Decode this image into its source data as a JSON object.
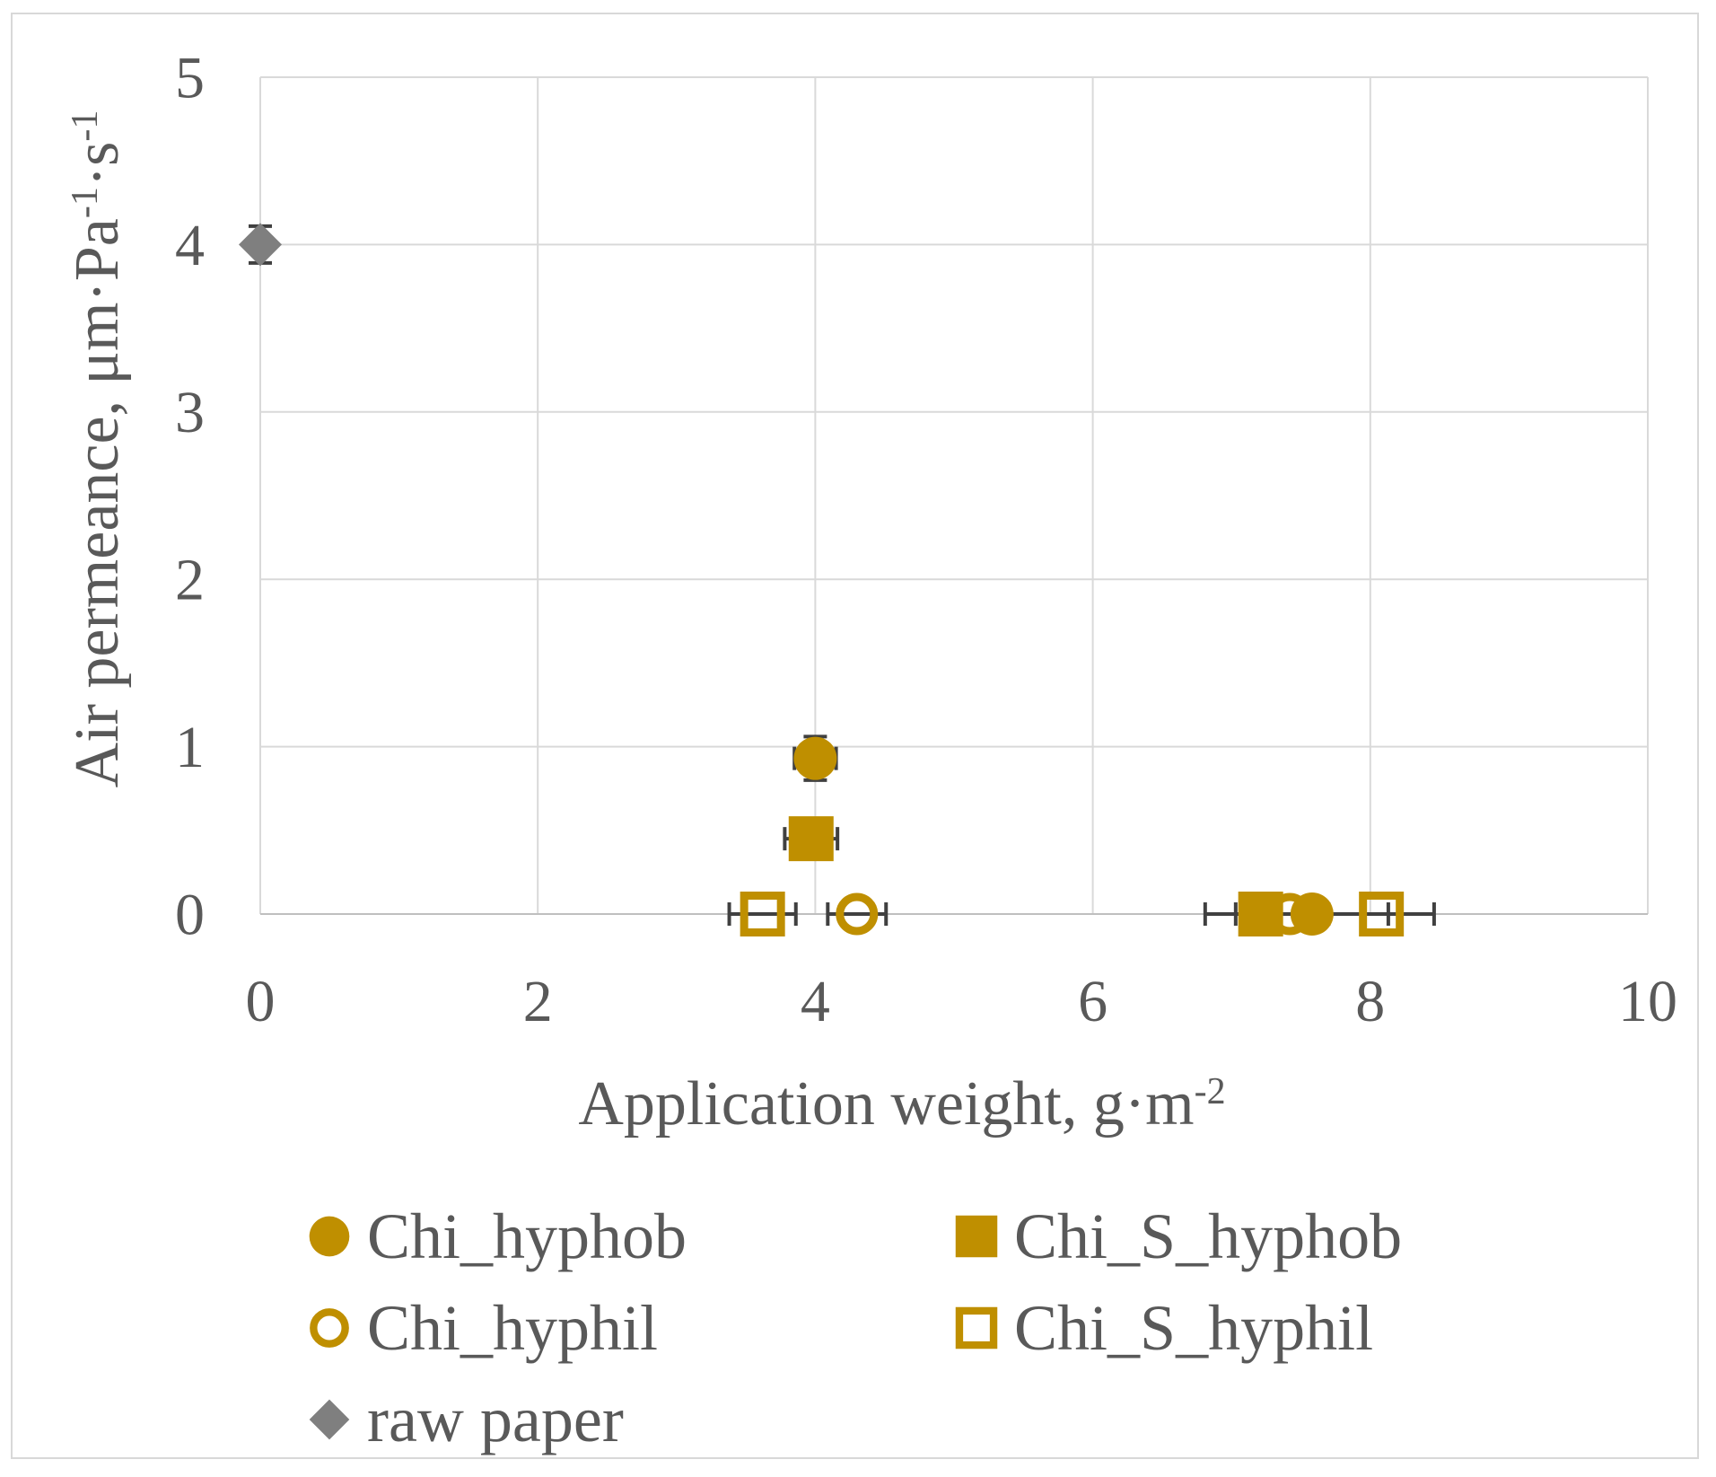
{
  "figure": {
    "background": "#ffffff",
    "border_color": "#d8d8d8"
  },
  "chart_data": {
    "type": "scatter",
    "title": "",
    "xlabel_segments": [
      {
        "text": "Application weight, g·m",
        "sup": false
      },
      {
        "text": "-2",
        "sup": true
      }
    ],
    "ylabel_segments": [
      {
        "text": "Air permeance, μm·Pa",
        "sup": false
      },
      {
        "text": "-1",
        "sup": true
      },
      {
        "text": "·s",
        "sup": false
      },
      {
        "text": "-1",
        "sup": true
      }
    ],
    "xlim": [
      0,
      10
    ],
    "ylim": [
      0,
      5
    ],
    "xticks": [
      0,
      2,
      4,
      6,
      8,
      10
    ],
    "yticks": [
      0,
      1,
      2,
      3,
      4,
      5
    ],
    "grid": true,
    "legend_position": "bottom",
    "colors": {
      "gold": "#BF8F00",
      "gray_marker": "#7F7F7F",
      "text": "#595959",
      "gridline": "#d9d9d9",
      "axis_line": "#bfbfbf",
      "error_bar": "#404040"
    },
    "series": [
      {
        "name": "Chi_hyphob",
        "marker": "circle",
        "fill": "solid",
        "color": "#BF8F00",
        "points": [
          {
            "x": 4.0,
            "y": 0.93,
            "xerr": 0.15,
            "yerr": 0.13
          },
          {
            "x": 7.58,
            "y": 0,
            "xerr": 0.55,
            "yerr": 0
          }
        ]
      },
      {
        "name": "Chi_S_hyphob",
        "marker": "square",
        "fill": "solid",
        "color": "#BF8F00",
        "points": [
          {
            "x": 3.97,
            "y": 0.45,
            "xerr": 0.19,
            "yerr": 0
          },
          {
            "x": 7.21,
            "y": 0,
            "xerr": 0.4,
            "yerr": 0
          }
        ]
      },
      {
        "name": "Chi_hyphil",
        "marker": "circle",
        "fill": "open",
        "color": "#BF8F00",
        "points": [
          {
            "x": 4.3,
            "y": 0,
            "xerr": 0.21,
            "yerr": 0
          },
          {
            "x": 7.42,
            "y": 0,
            "xerr": 0.18,
            "yerr": 0
          }
        ]
      },
      {
        "name": "Chi_S_hyphil",
        "marker": "square",
        "fill": "open",
        "color": "#BF8F00",
        "points": [
          {
            "x": 3.62,
            "y": 0,
            "xerr": 0.24,
            "yerr": 0
          },
          {
            "x": 8.08,
            "y": 0,
            "xerr": 0.38,
            "yerr": 0
          }
        ]
      },
      {
        "name": "raw paper",
        "marker": "diamond",
        "fill": "solid",
        "color": "#7F7F7F",
        "points": [
          {
            "x": 0,
            "y": 4.0,
            "xerr": 0,
            "yerr": 0.11
          }
        ]
      }
    ]
  }
}
